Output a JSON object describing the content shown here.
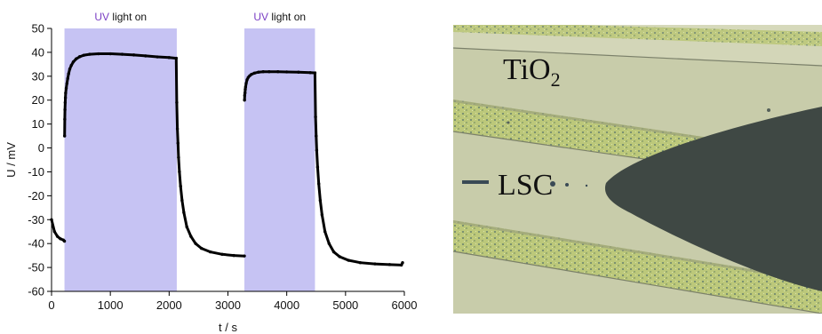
{
  "chart_data": {
    "type": "scatter",
    "xlabel": "t / s",
    "ylabel": "U / mV",
    "xlim": [
      0,
      6000
    ],
    "ylim": [
      -60,
      50
    ],
    "xticks": [
      0,
      1000,
      2000,
      3000,
      4000,
      5000,
      6000
    ],
    "yticks": [
      -60,
      -50,
      -40,
      -30,
      -20,
      -10,
      0,
      10,
      20,
      30,
      40,
      50
    ],
    "grid": false,
    "annotations": [
      {
        "kind": "shaded_region",
        "x_start": 220,
        "x_end": 2130,
        "label_prefix": "UV",
        "label_rest": " light on",
        "label_prefix_color": "#7b3fc4"
      },
      {
        "kind": "shaded_region",
        "x_start": 3280,
        "x_end": 4480,
        "label_prefix": "UV",
        "label_rest": " light on",
        "label_prefix_color": "#7b3fc4"
      }
    ],
    "shade_color": "#c6c3f3",
    "marker_color": "#000000",
    "series": [
      {
        "x": [
          0,
          50,
          100,
          150,
          200,
          220,
          222,
          225,
          228,
          232,
          236,
          240,
          250,
          262,
          275,
          290,
          310,
          335,
          370,
          420,
          480,
          550,
          650,
          800,
          1000,
          1200,
          1400,
          1600,
          1800,
          2000,
          2120,
          2130,
          2140,
          2150,
          2160,
          2175,
          2195,
          2220,
          2250,
          2300,
          2370,
          2450,
          2550,
          2700,
          2900,
          3100,
          3280,
          3282,
          3285,
          3290,
          3295,
          3300,
          3310,
          3325,
          3345,
          3370,
          3400,
          3450,
          3520,
          3600,
          3700,
          3850,
          4000,
          4200,
          4400,
          4480,
          4490,
          4500,
          4510,
          4525,
          4545,
          4570,
          4600,
          4650,
          4720,
          4800,
          4900,
          5050,
          5250,
          5500,
          5750,
          5950,
          5970
        ],
        "y": [
          -30,
          -35,
          -37,
          -38,
          -38.5,
          -39,
          5,
          12,
          16,
          19,
          21,
          23,
          25,
          27,
          29,
          31,
          33,
          34.5,
          36,
          37.3,
          38.2,
          38.8,
          39.2,
          39.4,
          39.4,
          39.2,
          38.9,
          38.5,
          38.1,
          37.8,
          37.5,
          19,
          8,
          2,
          -4,
          -10,
          -16,
          -22,
          -27,
          -33,
          -37,
          -40,
          -42,
          -43.5,
          -44.5,
          -45,
          -45.2,
          20,
          22,
          23,
          24.5,
          25.5,
          27,
          28.5,
          29.5,
          30.2,
          30.8,
          31.3,
          31.7,
          31.9,
          31.9,
          31.9,
          31.8,
          31.7,
          31.5,
          31.4,
          13,
          5,
          -1,
          -8,
          -15,
          -22,
          -28,
          -35,
          -40,
          -43.5,
          -45.5,
          -47,
          -48,
          -48.5,
          -48.8,
          -49,
          -48
        ]
      }
    ]
  },
  "micro": {
    "label_tio": "TiO",
    "label_tio_sub": "2",
    "label_lsc": "LSC"
  }
}
